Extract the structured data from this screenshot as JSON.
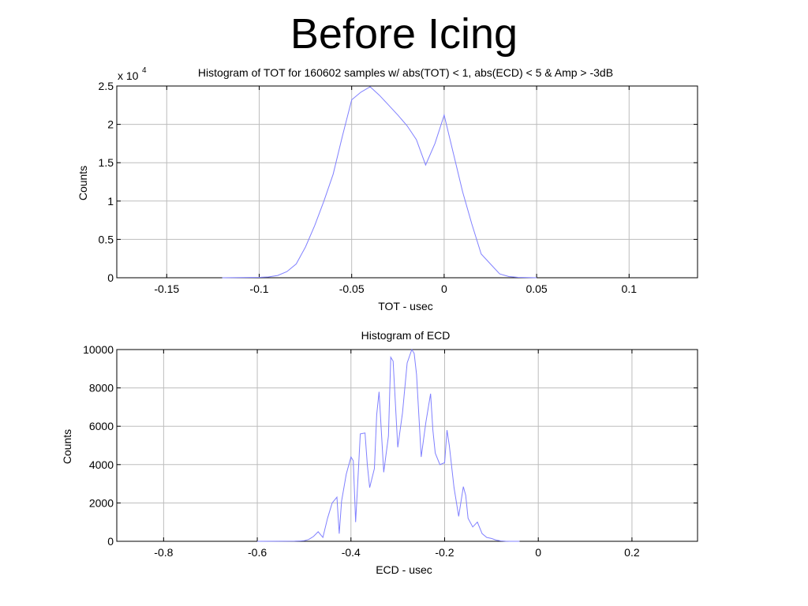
{
  "slide": {
    "title": "Before Icing"
  },
  "chart_data": [
    {
      "type": "line",
      "title": "Histogram of TOT for 160602 samples w/ abs(TOT) < 1, abs(ECD) < 5 & Amp > -3dB",
      "xlabel": "TOT -  usec",
      "ylabel": "Counts",
      "y_multiplier_label": "x 10",
      "y_multiplier_exponent": "4",
      "xlim": [
        -0.177,
        0.137
      ],
      "ylim": [
        0,
        2.5
      ],
      "xticks": [
        -0.15,
        -0.1,
        -0.05,
        0,
        0.05,
        0.1
      ],
      "xtick_labels": [
        "-0.15",
        "-0.1",
        "-0.05",
        "0",
        "0.05",
        "0.1"
      ],
      "yticks": [
        0,
        0.5,
        1,
        1.5,
        2,
        2.5
      ],
      "ytick_labels": [
        "0",
        "0.5",
        "1",
        "1.5",
        "2",
        "2.5"
      ],
      "grid": true,
      "line_color": "#8080ff",
      "series": [
        {
          "x": [
            -0.12,
            -0.11,
            -0.1,
            -0.095,
            -0.09,
            -0.085,
            -0.08,
            -0.075,
            -0.07,
            -0.065,
            -0.06,
            -0.055,
            -0.05,
            -0.045,
            -0.04,
            -0.035,
            -0.03,
            -0.025,
            -0.02,
            -0.015,
            -0.01,
            -0.005,
            0,
            0.005,
            0.01,
            0.015,
            0.02,
            0.025,
            0.03,
            0.035,
            0.04,
            0.05
          ],
          "y": [
            0,
            0.003,
            0.005,
            0.01,
            0.03,
            0.08,
            0.18,
            0.4,
            0.68,
            1.0,
            1.35,
            1.85,
            2.32,
            2.42,
            2.49,
            2.38,
            2.25,
            2.12,
            1.98,
            1.8,
            1.47,
            1.75,
            2.12,
            1.62,
            1.12,
            0.7,
            0.31,
            0.18,
            0.05,
            0.015,
            0.005,
            0
          ]
        }
      ]
    },
    {
      "type": "line",
      "title": "Histogram of ECD",
      "xlabel": "ECD -  usec",
      "ylabel": "Counts",
      "xlim": [
        -0.9,
        0.34
      ],
      "ylim": [
        0,
        10000
      ],
      "xticks": [
        -0.8,
        -0.6,
        -0.4,
        -0.2,
        0,
        0.2
      ],
      "xtick_labels": [
        "-0.8",
        "-0.6",
        "-0.4",
        "-0.2",
        "0",
        "0.2"
      ],
      "yticks": [
        0,
        2000,
        4000,
        6000,
        8000,
        10000
      ],
      "ytick_labels": [
        "0",
        "2000",
        "4000",
        "6000",
        "8000",
        "10000"
      ],
      "grid": true,
      "line_color": "#8080ff",
      "series": [
        {
          "x": [
            -0.6,
            -0.55,
            -0.52,
            -0.5,
            -0.49,
            -0.48,
            -0.47,
            -0.46,
            -0.45,
            -0.44,
            -0.43,
            -0.425,
            -0.42,
            -0.41,
            -0.4,
            -0.395,
            -0.39,
            -0.385,
            -0.38,
            -0.37,
            -0.365,
            -0.36,
            -0.35,
            -0.345,
            -0.34,
            -0.33,
            -0.32,
            -0.315,
            -0.31,
            -0.3,
            -0.29,
            -0.28,
            -0.27,
            -0.265,
            -0.26,
            -0.25,
            -0.24,
            -0.23,
            -0.225,
            -0.22,
            -0.21,
            -0.2,
            -0.195,
            -0.19,
            -0.18,
            -0.17,
            -0.16,
            -0.155,
            -0.15,
            -0.14,
            -0.13,
            -0.12,
            -0.11,
            -0.1,
            -0.09,
            -0.08,
            -0.07,
            -0.06,
            -0.05,
            -0.04
          ],
          "y": [
            0,
            5,
            10,
            30,
            100,
            250,
            500,
            200,
            1200,
            2000,
            2300,
            400,
            2100,
            3500,
            4400,
            4200,
            1000,
            3300,
            5600,
            5650,
            4000,
            2800,
            3800,
            6600,
            7800,
            3600,
            5500,
            9600,
            9400,
            4900,
            6700,
            9300,
            10000,
            9800,
            8700,
            4400,
            6200,
            7700,
            5800,
            4600,
            4000,
            4100,
            5800,
            5000,
            2800,
            1300,
            2850,
            2400,
            1200,
            750,
            1000,
            400,
            200,
            150,
            60,
            20,
            5,
            0,
            0,
            0
          ]
        }
      ]
    }
  ]
}
